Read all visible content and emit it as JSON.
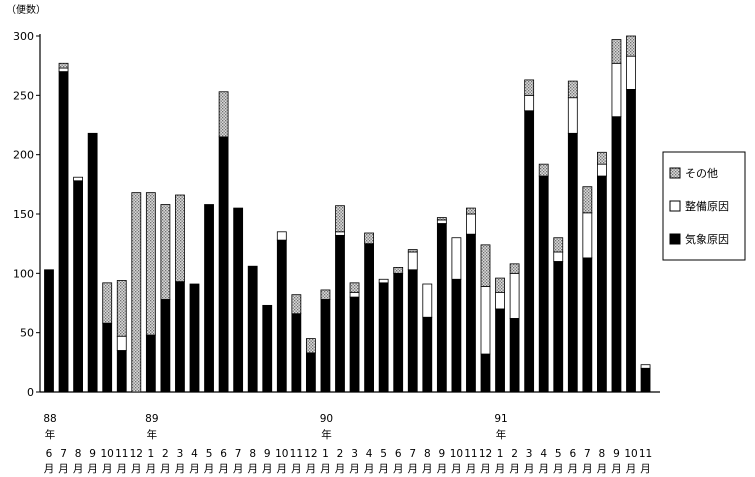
{
  "chart_data": {
    "type": "bar",
    "stacked": true,
    "unit_label": "（便数）",
    "ylim": [
      0,
      300
    ],
    "yticks": [
      0,
      50,
      100,
      150,
      200,
      250,
      300
    ],
    "grid": false,
    "legend_position": "right",
    "legend": [
      {
        "key": "other",
        "label": "その他"
      },
      {
        "key": "maintenance",
        "label": "整備原因"
      },
      {
        "key": "weather",
        "label": "気象原因"
      }
    ],
    "colors": {
      "weather": "#000000",
      "maintenance": "#ffffff",
      "other_fill": "#d9d9d9",
      "other_dot": "#6e6e6e"
    },
    "month_suffix": "月",
    "year_suffix": "年",
    "year_markers": [
      {
        "index": 0,
        "year": "88"
      },
      {
        "index": 7,
        "year": "89"
      },
      {
        "index": 19,
        "year": "90"
      },
      {
        "index": 31,
        "year": "91"
      }
    ],
    "categories": [
      "6",
      "7",
      "8",
      "9",
      "10",
      "11",
      "12",
      "1",
      "2",
      "3",
      "4",
      "5",
      "6",
      "7",
      "8",
      "9",
      "10",
      "11",
      "12",
      "1",
      "2",
      "3",
      "4",
      "5",
      "6",
      "7",
      "8",
      "9",
      "10",
      "11",
      "12",
      "1",
      "2",
      "3",
      "4",
      "5",
      "6",
      "7",
      "8",
      "9",
      "10",
      "11"
    ],
    "series": [
      {
        "name": "気象原因",
        "key": "weather",
        "values": [
          103,
          270,
          178,
          218,
          58,
          35,
          0,
          48,
          78,
          93,
          91,
          158,
          215,
          155,
          106,
          73,
          128,
          66,
          33,
          78,
          132,
          80,
          125,
          92,
          100,
          103,
          63,
          142,
          95,
          133,
          32,
          70,
          62,
          237,
          182,
          110,
          218,
          113,
          182,
          232,
          255,
          20
        ]
      },
      {
        "name": "整備原因",
        "key": "maintenance",
        "values": [
          0,
          3,
          3,
          0,
          0,
          12,
          0,
          0,
          0,
          0,
          0,
          0,
          0,
          0,
          0,
          0,
          7,
          0,
          0,
          0,
          3,
          4,
          0,
          3,
          0,
          15,
          28,
          3,
          35,
          17,
          57,
          14,
          38,
          13,
          0,
          8,
          30,
          38,
          10,
          45,
          28,
          3
        ]
      },
      {
        "name": "その他",
        "key": "other",
        "values": [
          0,
          4,
          0,
          0,
          34,
          47,
          168,
          120,
          80,
          73,
          0,
          0,
          38,
          0,
          0,
          0,
          0,
          16,
          12,
          8,
          22,
          8,
          9,
          0,
          5,
          2,
          0,
          2,
          0,
          5,
          35,
          12,
          8,
          13,
          10,
          12,
          14,
          22,
          10,
          20,
          17,
          0
        ]
      }
    ]
  }
}
